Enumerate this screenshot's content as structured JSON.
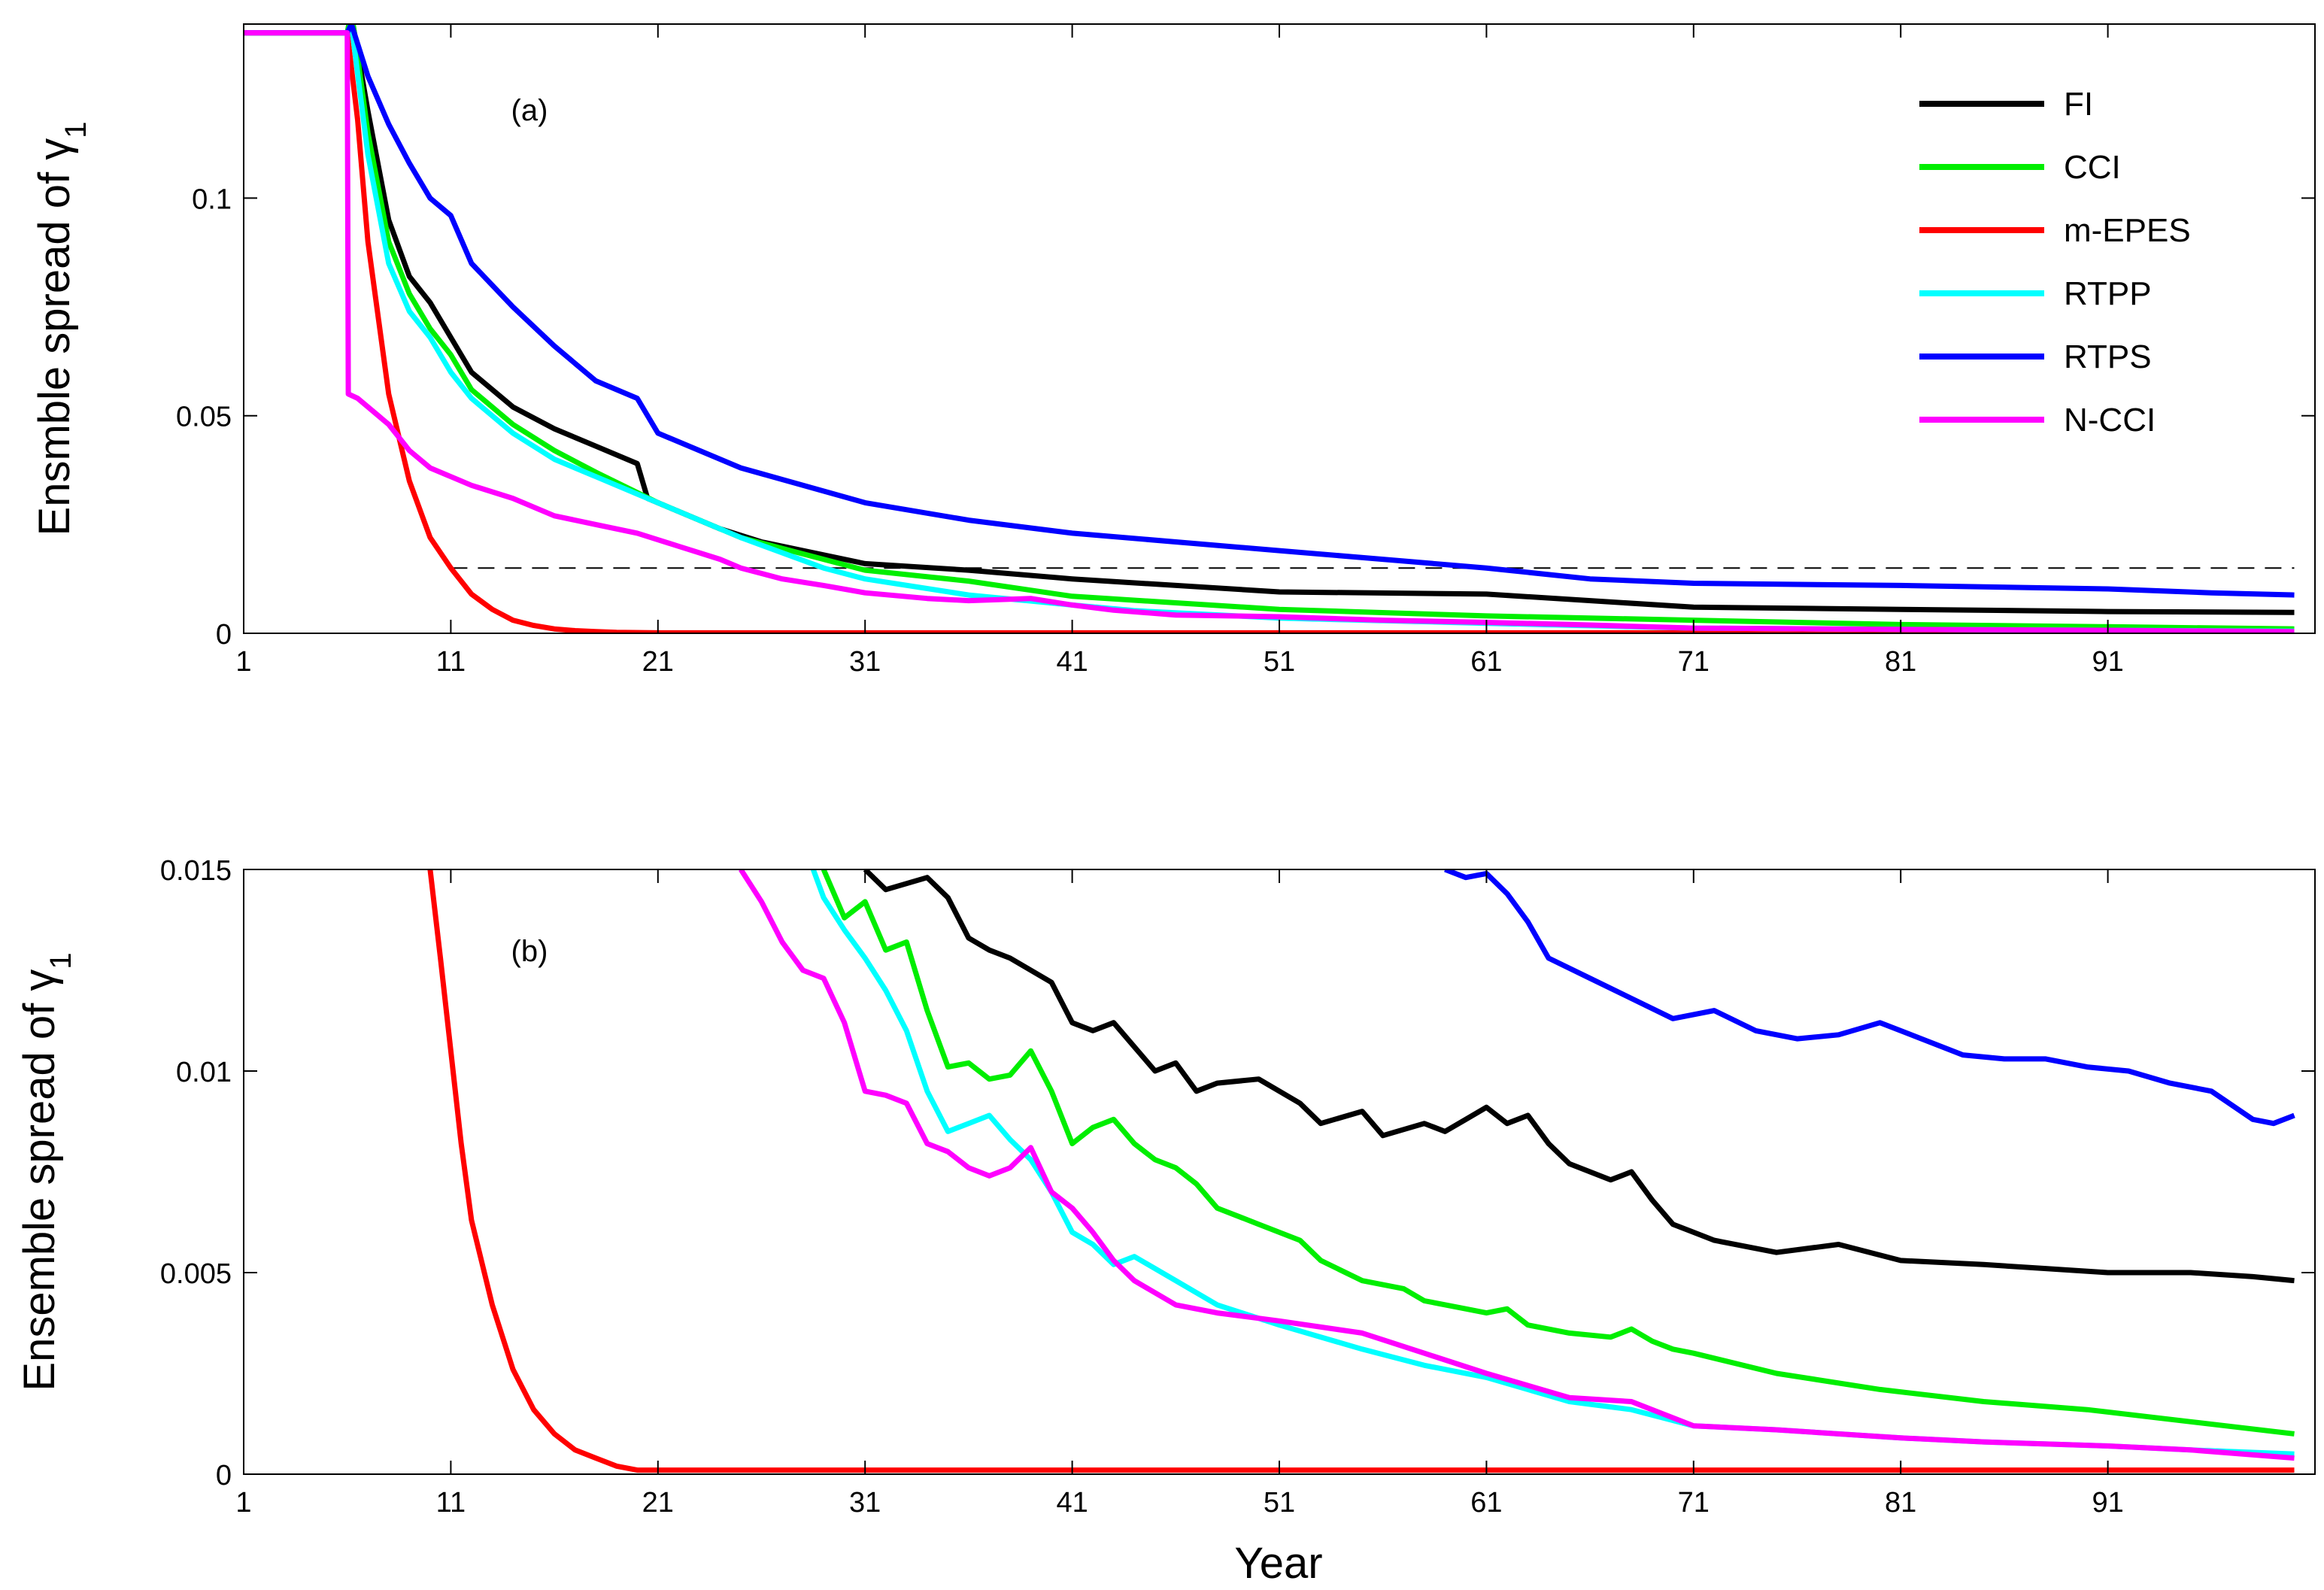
{
  "chart_data": [
    {
      "type": "line",
      "panel_label": "(a)",
      "xlabel": "",
      "ylabel": "Ensmble spread of γ",
      "ylabel_subscript": "1",
      "xlim": [
        1,
        101
      ],
      "ylim": [
        0,
        0.14
      ],
      "xticks": [
        1,
        11,
        21,
        31,
        41,
        51,
        61,
        71,
        81,
        91
      ],
      "xtick_labels": [
        "1",
        "11",
        "21",
        "31",
        "41",
        "51",
        "61",
        "71",
        "81",
        "91"
      ],
      "yticks": [
        0,
        0.05,
        0.1
      ],
      "ytick_labels": [
        "0",
        "0.05",
        "0.1"
      ],
      "reference_line": {
        "y": 0.015,
        "x_range": [
          11,
          100
        ],
        "style": "dashed"
      },
      "legend_position": "top-right",
      "series": [
        {
          "name": "FI",
          "color": "#000000",
          "x": [
            1,
            6,
            6.2,
            7,
            8,
            9,
            10,
            11,
            12,
            14,
            16,
            18,
            20,
            20.5,
            22,
            24,
            26,
            28,
            31,
            36,
            41,
            51,
            61,
            71,
            81,
            91,
            100
          ],
          "y": [
            0.138,
            0.138,
            0.142,
            0.12,
            0.095,
            0.082,
            0.076,
            0.068,
            0.06,
            0.052,
            0.047,
            0.043,
            0.039,
            0.031,
            0.028,
            0.024,
            0.021,
            0.019,
            0.016,
            0.0145,
            0.0125,
            0.0095,
            0.009,
            0.006,
            0.0055,
            0.005,
            0.0048
          ]
        },
        {
          "name": "CCI",
          "color": "#00ee00",
          "x": [
            1,
            6,
            6.2,
            7,
            8,
            9,
            10,
            11,
            12,
            14,
            16,
            18,
            21,
            25,
            31,
            36,
            41,
            51,
            61,
            71,
            81,
            91,
            100
          ],
          "y": [
            0.138,
            0.138,
            0.143,
            0.115,
            0.09,
            0.078,
            0.07,
            0.064,
            0.056,
            0.048,
            0.042,
            0.037,
            0.03,
            0.022,
            0.0145,
            0.012,
            0.0085,
            0.0055,
            0.004,
            0.003,
            0.002,
            0.0015,
            0.001
          ]
        },
        {
          "name": "m-EPES",
          "color": "#ff0000",
          "x": [
            1,
            6,
            6.5,
            7,
            8,
            9,
            10,
            11,
            12,
            13,
            14,
            15,
            16,
            17,
            18,
            19,
            21,
            31,
            100
          ],
          "y": [
            0.138,
            0.138,
            0.118,
            0.09,
            0.055,
            0.035,
            0.022,
            0.015,
            0.009,
            0.0055,
            0.003,
            0.0018,
            0.001,
            0.0006,
            0.0004,
            0.0002,
            0.0001,
            0.0001,
            0.0001
          ]
        },
        {
          "name": "RTPP",
          "color": "#00ffff",
          "x": [
            1,
            6,
            6.2,
            7,
            8,
            9,
            10,
            11,
            12,
            14,
            16,
            18,
            20,
            22,
            25,
            29,
            31,
            36,
            41,
            44,
            51,
            61,
            71,
            81,
            91,
            100
          ],
          "y": [
            0.138,
            0.138,
            0.14,
            0.11,
            0.085,
            0.074,
            0.068,
            0.06,
            0.054,
            0.046,
            0.04,
            0.036,
            0.032,
            0.028,
            0.022,
            0.015,
            0.0125,
            0.0088,
            0.0065,
            0.0052,
            0.0035,
            0.0023,
            0.0012,
            0.0009,
            0.0007,
            0.0005
          ]
        },
        {
          "name": "RTPS",
          "color": "#0000ff",
          "x": [
            1,
            6,
            6.2,
            7,
            8,
            9,
            10,
            11,
            12,
            14,
            16,
            18,
            20,
            21,
            25,
            31,
            36,
            41,
            51,
            61,
            66,
            71,
            81,
            91,
            96,
            100
          ],
          "y": [
            0.138,
            0.138,
            0.14,
            0.128,
            0.117,
            0.108,
            0.1,
            0.096,
            0.085,
            0.075,
            0.066,
            0.058,
            0.054,
            0.046,
            0.038,
            0.03,
            0.026,
            0.023,
            0.019,
            0.015,
            0.0125,
            0.0115,
            0.011,
            0.0102,
            0.0093,
            0.0088
          ]
        },
        {
          "name": "N-CCI",
          "color": "#ff00ff",
          "x": [
            1,
            6,
            6.05,
            6.5,
            7,
            8,
            9,
            10,
            11,
            12,
            14,
            16,
            18,
            20,
            22,
            24,
            25,
            27,
            29,
            31,
            34,
            36,
            39,
            41,
            43,
            46,
            51,
            56,
            61,
            66,
            71,
            81,
            91,
            100
          ],
          "y": [
            0.138,
            0.138,
            0.055,
            0.054,
            0.052,
            0.048,
            0.042,
            0.038,
            0.036,
            0.034,
            0.031,
            0.027,
            0.025,
            0.023,
            0.02,
            0.017,
            0.015,
            0.0125,
            0.011,
            0.0093,
            0.008,
            0.0075,
            0.008,
            0.0065,
            0.0053,
            0.0042,
            0.0038,
            0.003,
            0.0025,
            0.0019,
            0.0012,
            0.0009,
            0.0007,
            0.0004
          ]
        }
      ]
    },
    {
      "type": "line",
      "panel_label": "(b)",
      "xlabel": "Year",
      "ylabel": "Ensemble spread of γ",
      "ylabel_subscript": "1",
      "xlim": [
        1,
        101
      ],
      "ylim": [
        0,
        0.015
      ],
      "xticks": [
        1,
        11,
        21,
        31,
        41,
        51,
        61,
        71,
        81,
        91
      ],
      "xtick_labels": [
        "1",
        "11",
        "21",
        "31",
        "41",
        "51",
        "61",
        "71",
        "81",
        "91"
      ],
      "yticks": [
        0,
        0.005,
        0.01,
        0.015
      ],
      "ytick_labels": [
        "0",
        "0.005",
        "0.01",
        "0.015"
      ],
      "series": [
        {
          "name": "FI",
          "color": "#000000",
          "x": [
            31,
            32,
            34,
            35,
            36,
            37,
            38,
            40,
            41,
            42,
            43,
            44,
            45,
            46,
            47,
            48,
            50,
            52,
            53,
            55,
            56,
            58,
            59,
            60,
            61,
            62,
            63,
            64,
            65,
            66,
            67,
            68,
            69,
            70,
            71,
            72,
            75,
            78,
            81,
            85,
            88,
            91,
            95,
            98,
            100
          ],
          "y": [
            0.015,
            0.0145,
            0.0148,
            0.0143,
            0.0133,
            0.013,
            0.0128,
            0.0122,
            0.0112,
            0.011,
            0.0112,
            0.0106,
            0.01,
            0.0102,
            0.0095,
            0.0097,
            0.0098,
            0.0092,
            0.0087,
            0.009,
            0.0084,
            0.0087,
            0.0085,
            0.0088,
            0.0091,
            0.0087,
            0.0089,
            0.0082,
            0.0077,
            0.0075,
            0.0073,
            0.0075,
            0.0068,
            0.0062,
            0.006,
            0.0058,
            0.0055,
            0.0057,
            0.0053,
            0.0052,
            0.0051,
            0.005,
            0.005,
            0.0049,
            0.0048
          ]
        },
        {
          "name": "CCI",
          "color": "#00ee00",
          "x": [
            29,
            30,
            31,
            32,
            33,
            34,
            35,
            36,
            37,
            38,
            39,
            40,
            41,
            42,
            43,
            44,
            45,
            46,
            47,
            48,
            50,
            52,
            53,
            55,
            57,
            58,
            60,
            61,
            62,
            63,
            65,
            67,
            68,
            69,
            70,
            71,
            75,
            80,
            85,
            90,
            95,
            100
          ],
          "y": [
            0.015,
            0.0138,
            0.0142,
            0.013,
            0.0132,
            0.0115,
            0.0101,
            0.0102,
            0.0098,
            0.0099,
            0.0105,
            0.0095,
            0.0082,
            0.0086,
            0.0088,
            0.0082,
            0.0078,
            0.0076,
            0.0072,
            0.0066,
            0.0062,
            0.0058,
            0.0053,
            0.0048,
            0.0046,
            0.0043,
            0.0041,
            0.004,
            0.0041,
            0.0037,
            0.0035,
            0.0034,
            0.0036,
            0.0033,
            0.0031,
            0.003,
            0.0025,
            0.0021,
            0.0018,
            0.0016,
            0.0013,
            0.001
          ]
        },
        {
          "name": "m-EPES",
          "color": "#ff0000",
          "x": [
            10,
            10.5,
            11,
            11.5,
            12,
            13,
            14,
            15,
            16,
            17,
            18,
            19,
            20,
            21,
            31,
            100
          ],
          "y": [
            0.015,
            0.0128,
            0.0105,
            0.0082,
            0.0063,
            0.0042,
            0.0026,
            0.0016,
            0.001,
            0.0006,
            0.0004,
            0.0002,
            0.0001,
            0.0001,
            0.0001,
            0.0001
          ]
        },
        {
          "name": "RTPP",
          "color": "#00ffff",
          "x": [
            28.5,
            29,
            30,
            31,
            32,
            33,
            34,
            35,
            36,
            37,
            38,
            39,
            40,
            41,
            42,
            43,
            44,
            46,
            48,
            51,
            55,
            58,
            61,
            65,
            68,
            71,
            75,
            81,
            85,
            91,
            95,
            100
          ],
          "y": [
            0.015,
            0.0143,
            0.0135,
            0.0128,
            0.012,
            0.011,
            0.0095,
            0.0085,
            0.0087,
            0.0089,
            0.0083,
            0.0078,
            0.007,
            0.006,
            0.0057,
            0.0052,
            0.0054,
            0.0048,
            0.0042,
            0.0037,
            0.0031,
            0.0027,
            0.0024,
            0.0018,
            0.0016,
            0.0012,
            0.0011,
            0.0009,
            0.0008,
            0.0007,
            0.0006,
            0.0005
          ]
        },
        {
          "name": "RTPS",
          "color": "#0000ff",
          "x": [
            59,
            60,
            61,
            62,
            63,
            64,
            66,
            68,
            70,
            72,
            74,
            76,
            78,
            80,
            82,
            84,
            86,
            88,
            90,
            92,
            94,
            96,
            98,
            99,
            100
          ],
          "y": [
            0.015,
            0.0148,
            0.0149,
            0.0144,
            0.0137,
            0.0128,
            0.0123,
            0.0118,
            0.0113,
            0.0115,
            0.011,
            0.0108,
            0.0109,
            0.0112,
            0.0108,
            0.0104,
            0.0103,
            0.0103,
            0.0101,
            0.01,
            0.0097,
            0.0095,
            0.0088,
            0.0087,
            0.0089
          ]
        },
        {
          "name": "N-CCI",
          "color": "#ff00ff",
          "x": [
            25,
            26,
            27,
            28,
            29,
            30,
            31,
            32,
            33,
            34,
            35,
            36,
            37,
            38,
            39,
            40,
            41,
            42,
            43,
            44,
            46,
            48,
            51,
            55,
            58,
            61,
            65,
            68,
            71,
            75,
            81,
            85,
            91,
            95,
            100
          ],
          "y": [
            0.015,
            0.0142,
            0.0132,
            0.0125,
            0.0123,
            0.0112,
            0.0095,
            0.0094,
            0.0092,
            0.0082,
            0.008,
            0.0076,
            0.0074,
            0.0076,
            0.0081,
            0.007,
            0.0066,
            0.006,
            0.0053,
            0.0048,
            0.0042,
            0.004,
            0.0038,
            0.0035,
            0.003,
            0.0025,
            0.0019,
            0.0018,
            0.0012,
            0.0011,
            0.0009,
            0.0008,
            0.0007,
            0.0006,
            0.0004
          ]
        }
      ]
    }
  ]
}
